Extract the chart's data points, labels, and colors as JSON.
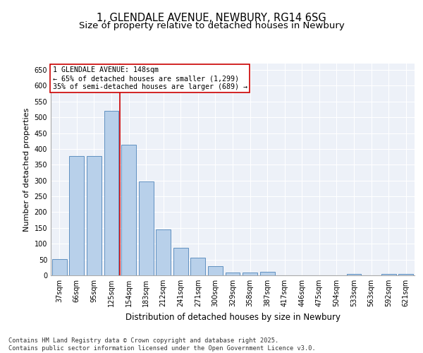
{
  "title1": "1, GLENDALE AVENUE, NEWBURY, RG14 6SG",
  "title2": "Size of property relative to detached houses in Newbury",
  "xlabel": "Distribution of detached houses by size in Newbury",
  "ylabel": "Number of detached properties",
  "categories": [
    "37sqm",
    "66sqm",
    "95sqm",
    "125sqm",
    "154sqm",
    "183sqm",
    "212sqm",
    "241sqm",
    "271sqm",
    "300sqm",
    "329sqm",
    "358sqm",
    "387sqm",
    "417sqm",
    "446sqm",
    "475sqm",
    "504sqm",
    "533sqm",
    "563sqm",
    "592sqm",
    "621sqm"
  ],
  "values": [
    52,
    378,
    378,
    521,
    413,
    298,
    145,
    86,
    56,
    29,
    10,
    9,
    11,
    1,
    1,
    1,
    0,
    4,
    0,
    4,
    4
  ],
  "bar_color": "#b8d0ea",
  "bar_edge_color": "#6090c0",
  "annotation_line1": "1 GLENDALE AVENUE: 148sqm",
  "annotation_line2": "← 65% of detached houses are smaller (1,299)",
  "annotation_line3": "35% of semi-detached houses are larger (689) →",
  "vline_color": "#cc0000",
  "vline_x": 3.5,
  "ylim": [
    0,
    670
  ],
  "yticks": [
    0,
    50,
    100,
    150,
    200,
    250,
    300,
    350,
    400,
    450,
    500,
    550,
    600,
    650
  ],
  "bg_color": "#edf1f8",
  "footer1": "Contains HM Land Registry data © Crown copyright and database right 2025.",
  "footer2": "Contains public sector information licensed under the Open Government Licence v3.0.",
  "title_fontsize": 10.5,
  "subtitle_fontsize": 9.5,
  "annotation_fontsize": 7.2,
  "ylabel_fontsize": 8,
  "xlabel_fontsize": 8.5,
  "tick_fontsize": 7,
  "footer_fontsize": 6.2
}
